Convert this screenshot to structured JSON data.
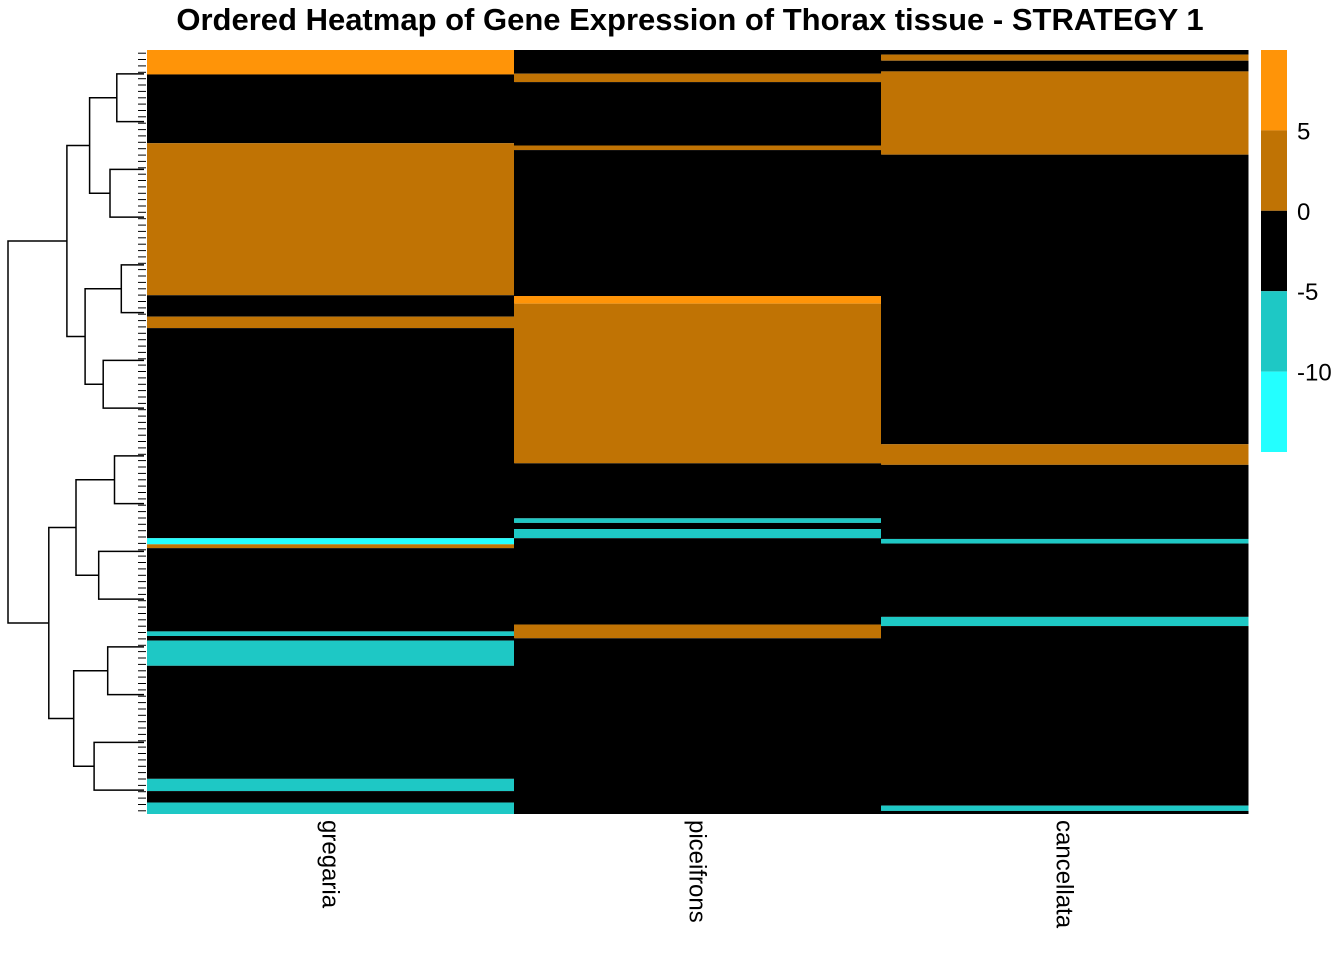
{
  "chart_data": {
    "type": "heatmap",
    "title": "Ordered Heatmap of Gene Expression of Thorax tissue - STRATEGY 1",
    "columns": [
      "gregaria",
      "piceifrons",
      "cancellata"
    ],
    "row_order_range": [
      0,
      100
    ],
    "legend": {
      "placement": "right",
      "ticks": [
        5,
        0,
        -5,
        -10
      ],
      "bins": [
        {
          "min": 5,
          "max": 10,
          "color": "#FF9408"
        },
        {
          "min": 0,
          "max": 5,
          "color": "#C07304"
        },
        {
          "min": -5,
          "max": 0,
          "color": "#000000"
        },
        {
          "min": -10,
          "max": -5,
          "color": "#1EC8C5"
        },
        {
          "min": -15,
          "max": -10,
          "color": "#23FFFF"
        }
      ]
    },
    "colors": {
      "high": "#FF9408",
      "mid_high": "#C07304",
      "zero": "#000000",
      "mid_low": "#1EC8C5",
      "low": "#23FFFF"
    },
    "column_segments": {
      "gregaria": [
        {
          "start": 0,
          "end": 3.2,
          "level": "high"
        },
        {
          "start": 3.2,
          "end": 12.2,
          "level": "zero"
        },
        {
          "start": 12.2,
          "end": 32.1,
          "level": "mid_high"
        },
        {
          "start": 32.1,
          "end": 34.9,
          "level": "zero"
        },
        {
          "start": 34.9,
          "end": 36.4,
          "level": "mid_high"
        },
        {
          "start": 36.4,
          "end": 63.9,
          "level": "zero"
        },
        {
          "start": 63.9,
          "end": 64.7,
          "level": "low"
        },
        {
          "start": 64.7,
          "end": 65.2,
          "level": "mid_high"
        },
        {
          "start": 65.2,
          "end": 76.1,
          "level": "zero"
        },
        {
          "start": 76.1,
          "end": 76.7,
          "level": "mid_low"
        },
        {
          "start": 76.7,
          "end": 77.3,
          "level": "zero"
        },
        {
          "start": 77.3,
          "end": 80.6,
          "level": "mid_low"
        },
        {
          "start": 80.6,
          "end": 95.4,
          "level": "zero"
        },
        {
          "start": 95.4,
          "end": 97.0,
          "level": "mid_low"
        },
        {
          "start": 97.0,
          "end": 98.5,
          "level": "zero"
        },
        {
          "start": 98.5,
          "end": 100,
          "level": "mid_low"
        }
      ],
      "piceifrons": [
        {
          "start": 0,
          "end": 3.1,
          "level": "zero"
        },
        {
          "start": 3.1,
          "end": 4.2,
          "level": "mid_high"
        },
        {
          "start": 4.2,
          "end": 12.5,
          "level": "zero"
        },
        {
          "start": 12.5,
          "end": 13.1,
          "level": "mid_high"
        },
        {
          "start": 13.1,
          "end": 32.2,
          "level": "zero"
        },
        {
          "start": 32.2,
          "end": 33.2,
          "level": "high"
        },
        {
          "start": 33.2,
          "end": 54.1,
          "level": "mid_high"
        },
        {
          "start": 54.1,
          "end": 61.3,
          "level": "zero"
        },
        {
          "start": 61.3,
          "end": 61.9,
          "level": "mid_low"
        },
        {
          "start": 61.9,
          "end": 62.7,
          "level": "zero"
        },
        {
          "start": 62.7,
          "end": 63.9,
          "level": "mid_low"
        },
        {
          "start": 63.9,
          "end": 75.2,
          "level": "zero"
        },
        {
          "start": 75.2,
          "end": 77.0,
          "level": "mid_high"
        },
        {
          "start": 77.0,
          "end": 100,
          "level": "zero"
        }
      ],
      "cancellata": [
        {
          "start": 0,
          "end": 0.6,
          "level": "zero"
        },
        {
          "start": 0.6,
          "end": 1.4,
          "level": "mid_high"
        },
        {
          "start": 1.4,
          "end": 2.8,
          "level": "zero"
        },
        {
          "start": 2.8,
          "end": 13.7,
          "level": "mid_high"
        },
        {
          "start": 13.7,
          "end": 51.6,
          "level": "zero"
        },
        {
          "start": 51.6,
          "end": 54.3,
          "level": "mid_high"
        },
        {
          "start": 54.3,
          "end": 64.0,
          "level": "zero"
        },
        {
          "start": 64.0,
          "end": 64.6,
          "level": "mid_low"
        },
        {
          "start": 64.6,
          "end": 74.2,
          "level": "zero"
        },
        {
          "start": 74.2,
          "end": 75.4,
          "level": "mid_low"
        },
        {
          "start": 75.4,
          "end": 98.9,
          "level": "zero"
        },
        {
          "start": 98.9,
          "end": 99.6,
          "level": "mid_low"
        },
        {
          "start": 99.6,
          "end": 100,
          "level": "zero"
        }
      ]
    },
    "row_dendrogram": {
      "leaves": 16,
      "merges": [
        [
          0,
          1,
          1.2
        ],
        [
          2,
          3,
          1.5
        ],
        [
          16,
          17,
          2.4
        ],
        [
          4,
          5,
          1.0
        ],
        [
          6,
          7,
          1.8
        ],
        [
          19,
          20,
          2.6
        ],
        [
          18,
          21,
          3.4
        ],
        [
          8,
          9,
          1.3
        ],
        [
          10,
          11,
          2.0
        ],
        [
          23,
          24,
          3.0
        ],
        [
          12,
          13,
          1.6
        ],
        [
          14,
          15,
          2.2
        ],
        [
          26,
          27,
          3.1
        ],
        [
          25,
          28,
          4.2
        ],
        [
          22,
          29,
          6.0
        ]
      ]
    }
  }
}
